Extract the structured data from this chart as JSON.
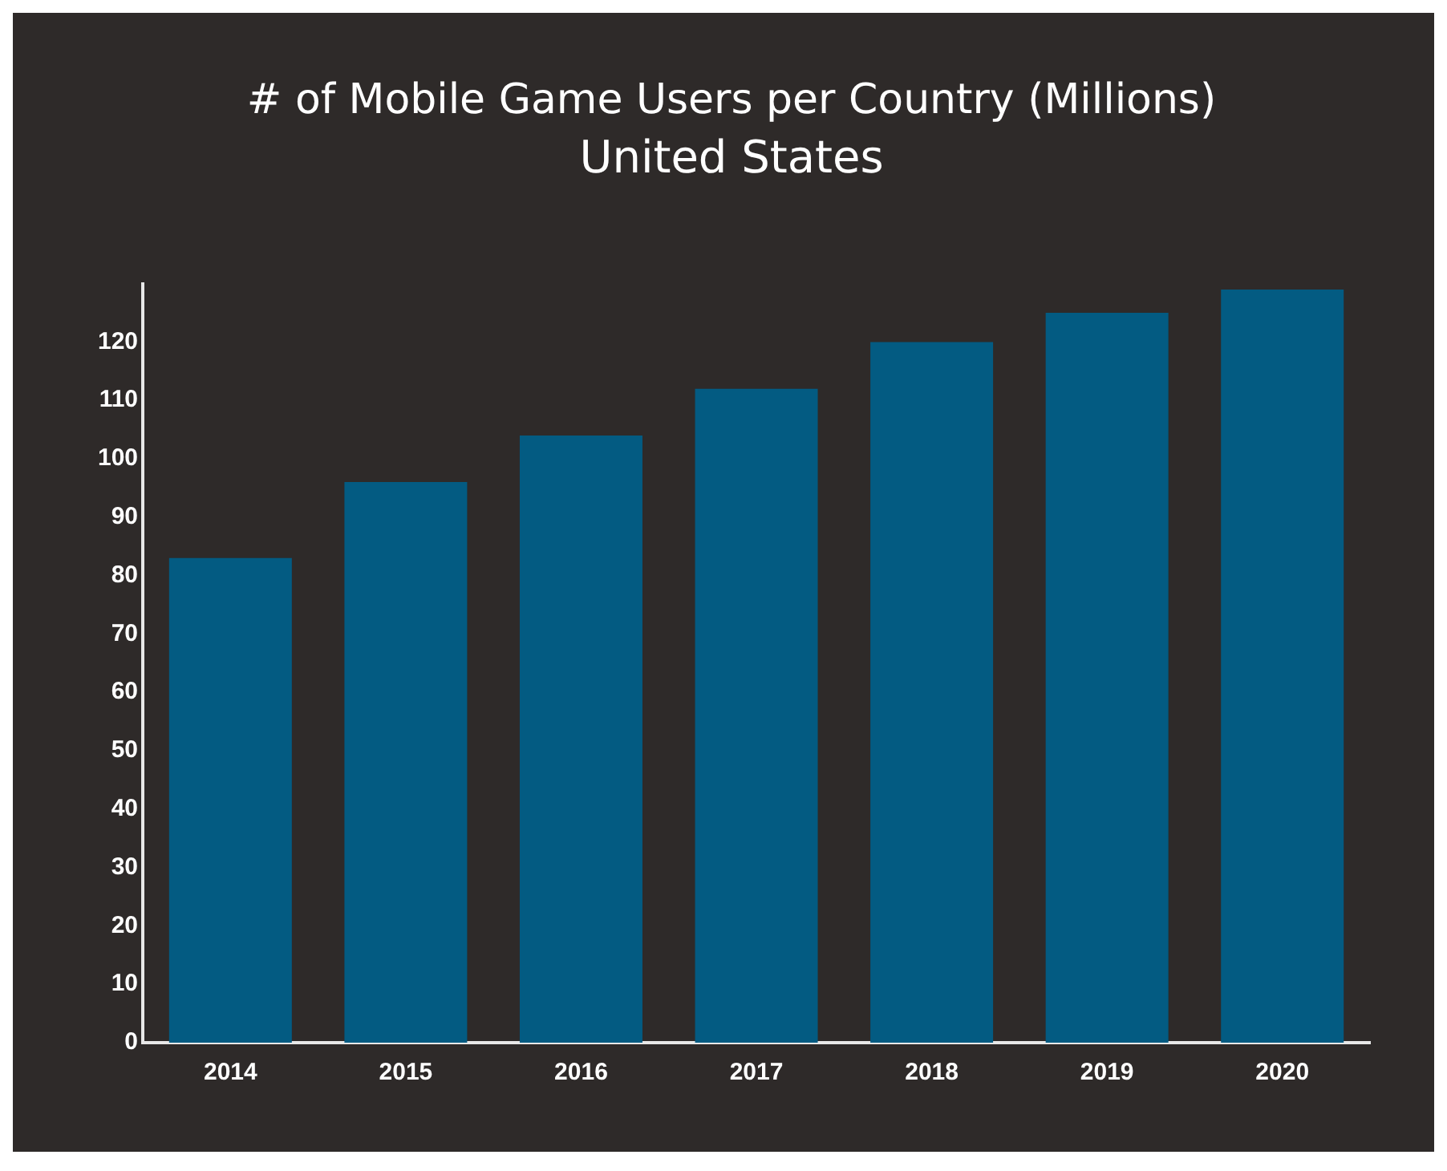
{
  "chart_data": {
    "type": "bar",
    "title": "# of Mobile Game Users per Country (Millions)",
    "subtitle": "United States",
    "categories": [
      "2014",
      "2015",
      "2016",
      "2017",
      "2018",
      "2019",
      "2020"
    ],
    "values": [
      83,
      96,
      104,
      112,
      120,
      125,
      129
    ],
    "color": "#035b82",
    "ylim": [
      0,
      130
    ],
    "yticks": [
      0,
      10,
      20,
      30,
      40,
      50,
      60,
      70,
      80,
      90,
      100,
      110,
      120
    ],
    "grid": false,
    "legend": false
  }
}
